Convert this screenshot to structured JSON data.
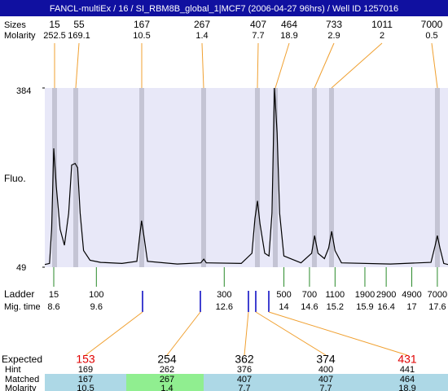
{
  "header": {
    "title": "FANCL-multiEx / 16 / SI_RBM8B_global_1|MCF7 (2006-04-27 96hrs) / Well ID 1257016"
  },
  "peaks": {
    "size_label": "Sizes",
    "molarity_label": "Molarity",
    "sizes": [
      15,
      55,
      167,
      267,
      407,
      464,
      733,
      1011,
      7000
    ],
    "molarity": [
      252.5,
      169.1,
      10.5,
      1.4,
      7.7,
      18.9,
      2.9,
      2,
      0.5
    ]
  },
  "chart_data": {
    "type": "line",
    "y_label": "Fluo.",
    "ylim": [
      49,
      384
    ],
    "yticks": [
      49,
      384
    ],
    "xlim": [
      8.39,
      17.85
    ],
    "x": [
      8.39,
      8.5,
      8.55,
      8.6,
      8.66,
      8.75,
      8.85,
      8.95,
      9.02,
      9.1,
      9.16,
      9.22,
      9.3,
      9.45,
      9.7,
      10.2,
      10.55,
      10.62,
      10.66,
      10.71,
      10.8,
      11.5,
      12.05,
      12.12,
      12.18,
      13.0,
      13.25,
      13.32,
      13.38,
      13.44,
      13.55,
      13.65,
      13.72,
      13.78,
      13.84,
      13.9,
      14.0,
      14.4,
      14.65,
      14.72,
      14.8,
      14.95,
      15.05,
      15.12,
      15.2,
      15.35,
      16.5,
      17.45,
      17.55,
      17.6,
      17.66,
      17.75,
      17.85
    ],
    "series": [
      {
        "color": "#000000",
        "values": [
          54,
          56,
          120,
          271,
          200,
          120,
          90,
          150,
          240,
          243,
          235,
          150,
          80,
          62,
          58,
          56,
          60,
          110,
          136,
          110,
          60,
          55,
          57,
          64,
          57,
          56,
          75,
          140,
          173,
          130,
          75,
          70,
          150,
          384,
          300,
          150,
          70,
          57,
          75,
          108,
          75,
          65,
          85,
          116,
          80,
          57,
          55,
          58,
          90,
          108,
          85,
          56,
          54
        ]
      }
    ]
  },
  "ladder": {
    "label": "Ladder",
    "time_label": "Mig. time",
    "sizes": [
      15,
      100,
      300,
      500,
      700,
      1100,
      1900,
      2900,
      4900,
      7000
    ],
    "times": [
      8.6,
      9.6,
      12.6,
      14,
      14.6,
      15.2,
      15.9,
      16.4,
      17,
      17.6
    ]
  },
  "table": {
    "labels": [
      "Expected",
      "Hint",
      "Matched",
      "Molarity"
    ],
    "expected": [
      153,
      254,
      362,
      374,
      431
    ],
    "expected_colors": [
      "#e00000",
      "#000000",
      "#000000",
      "#000000",
      "#e00000"
    ],
    "hint": [
      169,
      262,
      376,
      400,
      441
    ],
    "matched": [
      167,
      267,
      407,
      407,
      464
    ],
    "molarity": [
      10.5,
      1.4,
      7.7,
      7.7,
      18.9
    ],
    "column_colors": [
      "#add8e6",
      "#90ee90",
      "#add8e6",
      "#add8e6",
      "#add8e6"
    ]
  }
}
